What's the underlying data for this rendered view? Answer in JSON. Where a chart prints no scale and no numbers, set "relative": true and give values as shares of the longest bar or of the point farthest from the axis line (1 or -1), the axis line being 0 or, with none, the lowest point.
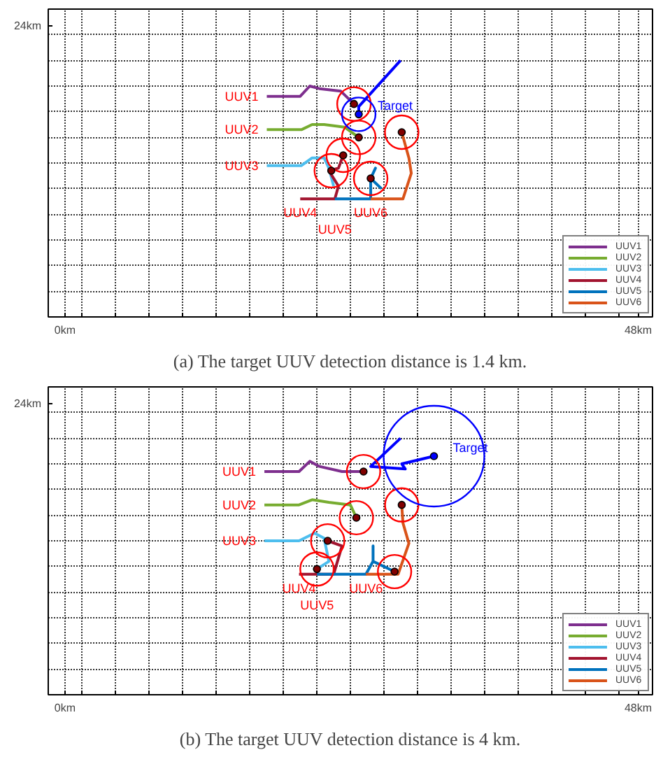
{
  "chart_data": [
    {
      "type": "line",
      "title": "(a) The target UUV detection distance is 1.4 km.",
      "relative": true,
      "xlim": [
        -1.4,
        49.2
      ],
      "xticks": [
        {
          "value": 0,
          "label": "0km"
        },
        {
          "value": 1.4,
          "label": null
        },
        {
          "value": 4.2,
          "label": null
        },
        {
          "value": 7.0,
          "label": null
        },
        {
          "value": 9.8,
          "label": null
        },
        {
          "value": 12.7,
          "label": null
        },
        {
          "value": 15.5,
          "label": null
        },
        {
          "value": 18.3,
          "label": null
        },
        {
          "value": 21.1,
          "label": null
        },
        {
          "value": 23.9,
          "label": null
        },
        {
          "value": 26.7,
          "label": null
        },
        {
          "value": 29.5,
          "label": null
        },
        {
          "value": 32.3,
          "label": null
        },
        {
          "value": 35.1,
          "label": null
        },
        {
          "value": 38.0,
          "label": null
        },
        {
          "value": 40.8,
          "label": null
        },
        {
          "value": 43.6,
          "label": null
        },
        {
          "value": 46.4,
          "label": null
        },
        {
          "value": 48,
          "label": "48km"
        }
      ],
      "grid": true,
      "legend": "bottom right",
      "series": [
        {
          "name": "UUV1",
          "color": "#7e2f8e",
          "x": [
            16.9,
            19.7,
            20.5,
            21.3,
            23.1,
            24.2
          ],
          "values": [
            0.86,
            0.86,
            0.9,
            0.89,
            0.88,
            0.83
          ]
        },
        {
          "name": "UUV2",
          "color": "#77ac30",
          "x": [
            16.9,
            19.8,
            20.7,
            21.7,
            23.4,
            24.6
          ],
          "values": [
            0.73,
            0.73,
            0.75,
            0.75,
            0.74,
            0.7
          ]
        },
        {
          "name": "UUV3",
          "color": "#4dbeee",
          "x": [
            16.9,
            19.8,
            20.7,
            21.7,
            22.1,
            22.5
          ],
          "values": [
            0.59,
            0.59,
            0.62,
            0.62,
            0.58,
            0.51
          ]
        },
        {
          "name": "UUV4",
          "color": "#a2142f",
          "x": [
            19.7,
            22.6,
            22.9,
            22.1,
            22.9,
            23.3
          ],
          "values": [
            0.46,
            0.46,
            0.51,
            0.57,
            0.58,
            0.63
          ]
        },
        {
          "name": "UUV5",
          "color": "#0072bd",
          "x": [
            22.6,
            25.6,
            25.6,
            26.0,
            25.6,
            26.5
          ],
          "values": [
            0.46,
            0.46,
            0.54,
            0.58,
            0.54,
            0.5
          ]
        },
        {
          "name": "UUV6",
          "color": "#d95319",
          "x": [
            25.6,
            28.3,
            29.0,
            28.8,
            28.2
          ],
          "values": [
            0.46,
            0.46,
            0.56,
            0.62,
            0.72
          ]
        },
        {
          "color": "#0000ff",
          "x": [
            28.1,
            24.6,
            24.6
          ],
          "values": [
            1,
            0.82,
            0.79
          ]
        },
        {
          "color": "#ff0000",
          "type": "bubble",
          "x": [
            24.2,
            24.6,
            23.3,
            22.3,
            25.6,
            28.2
          ],
          "values": [
            0.83,
            0.7,
            0.63,
            0.57,
            0.54,
            0.72
          ],
          "sizes": [
            1,
            1,
            1,
            1,
            1,
            1
          ]
        },
        {
          "color": "#0000ff",
          "type": "bubble",
          "x": [
            24.6
          ],
          "values": [
            0.79
          ],
          "sizes": [
            1
          ]
        },
        {
          "color": "#800000",
          "type": "scatter",
          "marker": "circle",
          "x": [
            24.2,
            24.6,
            23.3,
            22.3,
            25.6,
            28.2
          ],
          "values": [
            0.83,
            0.7,
            0.63,
            0.57,
            0.54,
            0.72
          ]
        },
        {
          "name": "Target",
          "color": "#0000ff",
          "type": "scatter",
          "marker": "circle",
          "x": [
            24.6
          ],
          "values": [
            0.79
          ]
        }
      ],
      "annotations": [
        "24km"
      ]
    },
    {
      "type": "line",
      "title": "(b) The target UUV detection distance is 4 km.",
      "relative": true,
      "xlim": [
        -1.4,
        49.2
      ],
      "xticks": [
        {
          "value": 0,
          "label": "0km"
        },
        {
          "value": 1.4,
          "label": null
        },
        {
          "value": 4.2,
          "label": null
        },
        {
          "value": 7.0,
          "label": null
        },
        {
          "value": 9.8,
          "label": null
        },
        {
          "value": 12.7,
          "label": null
        },
        {
          "value": 15.5,
          "label": null
        },
        {
          "value": 18.3,
          "label": null
        },
        {
          "value": 21.1,
          "label": null
        },
        {
          "value": 23.9,
          "label": null
        },
        {
          "value": 26.7,
          "label": null
        },
        {
          "value": 29.5,
          "label": null
        },
        {
          "value": 32.3,
          "label": null
        },
        {
          "value": 35.1,
          "label": null
        },
        {
          "value": 38.0,
          "label": null
        },
        {
          "value": 40.8,
          "label": null
        },
        {
          "value": 43.6,
          "label": null
        },
        {
          "value": 46.4,
          "label": null
        },
        {
          "value": 48,
          "label": "48km"
        }
      ],
      "grid": true,
      "legend": "bottom right",
      "series": [
        {
          "name": "UUV1",
          "color": "#7e2f8e",
          "x": [
            16.7,
            19.6,
            20.5,
            21.3,
            23.2,
            25.0
          ],
          "values": [
            0.87,
            0.87,
            0.91,
            0.89,
            0.87,
            0.87
          ]
        },
        {
          "name": "UUV2",
          "color": "#77ac30",
          "x": [
            16.7,
            19.6,
            20.7,
            22.1,
            23.9,
            24.4
          ],
          "values": [
            0.74,
            0.74,
            0.76,
            0.75,
            0.74,
            0.69
          ]
        },
        {
          "name": "UUV3",
          "color": "#4dbeee",
          "x": [
            16.7,
            19.6,
            20.9,
            21.7,
            22.1,
            21.1
          ],
          "values": [
            0.6,
            0.6,
            0.63,
            0.61,
            0.52,
            0.49
          ]
        },
        {
          "name": "UUV4",
          "color": "#a2142f",
          "x": [
            19.6,
            22.5,
            23.2,
            22.0
          ],
          "values": [
            0.47,
            0.47,
            0.58,
            0.6
          ]
        },
        {
          "name": "UUV5",
          "color": "#0072bd",
          "x": [
            21.1,
            25.2,
            25.8,
            25.8,
            25.8,
            27.6
          ],
          "values": [
            0.47,
            0.47,
            0.52,
            0.58,
            0.52,
            0.48
          ]
        },
        {
          "name": "UUV6",
          "color": "#d95319",
          "x": [
            25.2,
            27.9,
            28.8,
            28.3,
            28.2
          ],
          "values": [
            0.47,
            0.47,
            0.59,
            0.67,
            0.74
          ]
        },
        {
          "color": "#0000ff",
          "x": [
            28.1,
            25.6,
            28.5,
            28.2,
            30.9
          ],
          "values": [
            1,
            0.89,
            0.88,
            0.9,
            0.93
          ]
        },
        {
          "color": "#ff0000",
          "type": "bubble",
          "x": [
            25.0,
            24.4,
            28.2,
            22.0,
            21.1,
            27.6
          ],
          "values": [
            0.87,
            0.69,
            0.74,
            0.6,
            0.49,
            0.48
          ],
          "sizes": [
            0.11,
            0.11,
            0.11,
            0.11,
            0.11,
            0.11
          ]
        },
        {
          "color": "#0000ff",
          "type": "bubble",
          "x": [
            30.9
          ],
          "values": [
            0.93
          ],
          "sizes": [
            1
          ]
        },
        {
          "color": "#800000",
          "type": "scatter",
          "marker": "circle",
          "x": [
            25.0,
            24.4,
            28.2,
            22.0,
            21.1,
            27.6
          ],
          "values": [
            0.87,
            0.69,
            0.74,
            0.6,
            0.49,
            0.48
          ]
        },
        {
          "name": "Target",
          "color": "#0000ff",
          "type": "scatter",
          "marker": "circle",
          "x": [
            30.9
          ],
          "values": [
            0.93
          ]
        }
      ],
      "annotations": [
        "24km"
      ]
    }
  ]
}
